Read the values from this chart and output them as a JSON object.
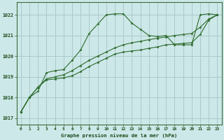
{
  "background_color": "#cde8e8",
  "grid_color": "#aacaca",
  "line_color": "#2d6b2d",
  "marker_color": "#2d6b2d",
  "xlabel": "Graphe pression niveau de la mer (hPa)",
  "xlim": [
    -0.5,
    23.5
  ],
  "ylim": [
    1016.7,
    1022.6
  ],
  "yticks": [
    1017,
    1018,
    1019,
    1020,
    1021,
    1022
  ],
  "xticks": [
    0,
    1,
    2,
    3,
    4,
    5,
    6,
    7,
    8,
    9,
    10,
    11,
    12,
    13,
    14,
    15,
    16,
    17,
    18,
    19,
    20,
    21,
    22,
    23
  ],
  "series": [
    {
      "x": [
        0,
        1,
        2,
        3,
        4,
        5,
        6,
        7,
        8,
        9,
        10,
        11,
        12,
        13,
        14,
        15,
        16,
        17,
        18,
        19,
        20,
        21,
        22,
        23
      ],
      "y": [
        1017.3,
        1018.0,
        1018.3,
        1019.2,
        1019.3,
        1019.35,
        1019.8,
        1020.3,
        1021.1,
        1021.55,
        1022.0,
        1022.05,
        1022.05,
        1021.6,
        1021.3,
        1021.0,
        1020.95,
        1021.0,
        1020.55,
        1020.55,
        1020.55,
        1022.0,
        1022.05,
        1022.0
      ]
    },
    {
      "x": [
        0,
        1,
        2,
        3,
        4,
        5,
        6,
        7,
        8,
        9,
        10,
        11,
        12,
        13,
        14,
        15,
        16,
        17,
        18,
        19,
        20,
        21,
        22,
        23
      ],
      "y": [
        1017.3,
        1018.0,
        1018.5,
        1018.9,
        1019.0,
        1019.1,
        1019.3,
        1019.55,
        1019.8,
        1020.0,
        1020.2,
        1020.4,
        1020.55,
        1020.65,
        1020.72,
        1020.8,
        1020.87,
        1020.93,
        1021.0,
        1021.05,
        1021.1,
        1021.4,
        1021.8,
        1022.0
      ]
    },
    {
      "x": [
        0,
        1,
        2,
        3,
        4,
        5,
        6,
        7,
        8,
        9,
        10,
        11,
        12,
        13,
        14,
        15,
        16,
        17,
        18,
        19,
        20,
        21,
        22,
        23
      ],
      "y": [
        1017.3,
        1018.0,
        1018.5,
        1018.85,
        1018.9,
        1018.95,
        1019.05,
        1019.25,
        1019.5,
        1019.7,
        1019.9,
        1020.1,
        1020.2,
        1020.25,
        1020.3,
        1020.38,
        1020.45,
        1020.55,
        1020.58,
        1020.62,
        1020.65,
        1021.05,
        1021.75,
        1022.0
      ]
    }
  ]
}
